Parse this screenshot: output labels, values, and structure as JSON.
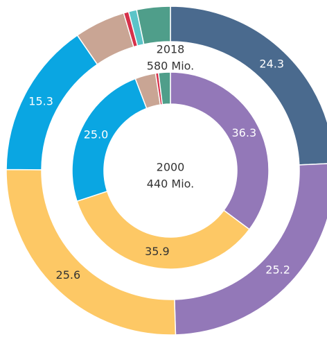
{
  "chart_data": {
    "type": "nested-donut",
    "rings": [
      {
        "title": "2018",
        "subtitle": "580 Mio.",
        "values": [
          24.3,
          25.2,
          25.6,
          15.3,
          5.0,
          0.5,
          0.8,
          3.3
        ],
        "value_labels": [
          "24.3",
          "25.2",
          "25.6",
          "15.3",
          null,
          null,
          null,
          null
        ],
        "colors": [
          "#4a6a8e",
          "#9378b8",
          "#fdc865",
          "#0aa6e2",
          "#c9a594",
          "#d6314a",
          "#5bc4c8",
          "#4f9e8a"
        ]
      },
      {
        "title": "2000",
        "subtitle": "440 Mio.",
        "values": [
          36.3,
          35.9,
          25.0,
          3.5,
          0.5,
          2.0
        ],
        "value_labels": [
          "36.3",
          "35.9",
          "25.0",
          null,
          null,
          null
        ],
        "colors": [
          "#9378b8",
          "#fdc865",
          "#0aa6e2",
          "#c9a594",
          "#d6314a",
          "#4f9e8a"
        ]
      }
    ]
  }
}
